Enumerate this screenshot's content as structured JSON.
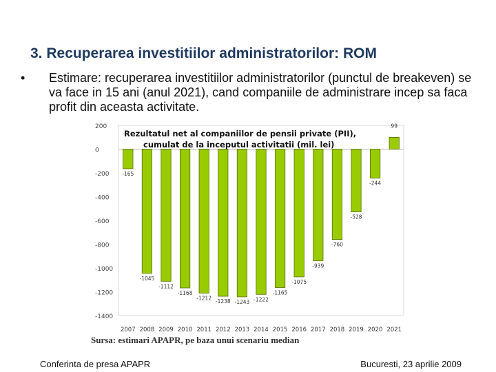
{
  "slide": {
    "title": "3. Recuperarea investitiilor administratorilor: ROM",
    "bullet_marker": "•",
    "bullet_text": "Estimare: recuperarea investitiilor administratorilor (punctul de breakeven) se va face in 15 ani (anul 2021), cand companiile de administrare incep sa faca profit din aceasta activitate.",
    "source": "Sursa: estimari APAPR, pe baza unui scenariu median",
    "footer_left": "Conferinta de presa APAPR",
    "footer_right": "Bucuresti, 23 aprilie 2009"
  },
  "chart_data": {
    "type": "bar",
    "title": "Rezultatul net al companiilor de pensii private (PII), cumulat de la inceputul activitatii (mil. lei)",
    "title_lines": [
      "Rezultatul net al companiilor de pensii private (PII),",
      "cumulat de la inceputul activitatii (mil. lei)"
    ],
    "categories": [
      "2007",
      "2008",
      "2009",
      "2010",
      "2011",
      "2012",
      "2013",
      "2014",
      "2015",
      "2016",
      "2017",
      "2018",
      "2019",
      "2020",
      "2021"
    ],
    "values": [
      -165,
      -1045,
      -1112,
      -1168,
      -1212,
      -1238,
      -1243,
      -1222,
      -1165,
      -1075,
      -939,
      -760,
      -528,
      -244,
      99
    ],
    "value_labels": [
      "-165",
      "-1045",
      "-1112",
      "-1168",
      "-1212",
      "-1238",
      "-1243",
      "-1222",
      "-1165",
      "-1075",
      "-939",
      "-760",
      "-528",
      "-244",
      "99"
    ],
    "ylim": [
      -1400,
      200
    ],
    "yticks": [
      200,
      0,
      -200,
      -400,
      -600,
      -800,
      -1000,
      -1200,
      -1400
    ],
    "ytick_labels": [
      "200",
      "0",
      "-200",
      "-400",
      "-600",
      "-800",
      "-1000",
      "-1200",
      "-1400"
    ],
    "xlabel": "",
    "ylabel": "",
    "grid": false,
    "bar_color": "#99cc00",
    "bar_edge_color": "#556b00"
  }
}
